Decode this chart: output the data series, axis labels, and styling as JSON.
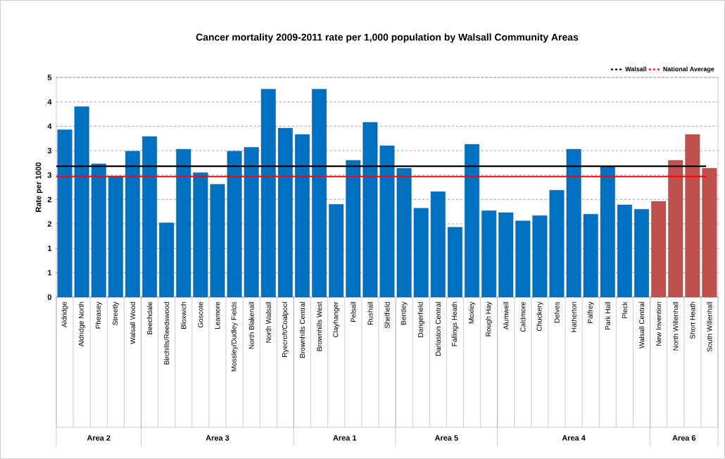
{
  "chart_data": {
    "type": "bar",
    "title": "Cancer mortality 2009-2011 rate per 1,000 population by Walsall Community Areas",
    "ylabel": "Rate per 1000",
    "categories": [
      "Aldridge",
      "Aldridge North",
      "Pheasey",
      "Streetly",
      "Walsall Wood",
      "Beechdale",
      "Birchills/Reedswood",
      "Bloxwich",
      "Goscote",
      "Leamore",
      "Mossley/Dudley Fields",
      "North Blakenall",
      "North Walsall",
      "Ryecroft/Coalpool",
      "Brownhills Central",
      "Brownhills West",
      "Clayhanger",
      "Pelsall",
      "Rushall",
      "Shelfield",
      "Bentley",
      "Dangerfield",
      "Darlaston Central",
      "Fallings Heath",
      "Moxley",
      "Rough Hay",
      "Alumwell",
      "Caldmore",
      "Chuckery",
      "Delves",
      "Hatherton",
      "Palfrey",
      "Park Hall",
      "Pleck",
      "Walsall Central",
      "New Invention",
      "North Willenhall",
      "Short Heath",
      "South Willenhall"
    ],
    "values": [
      3.43,
      3.9,
      2.73,
      2.48,
      2.99,
      3.29,
      1.52,
      3.03,
      2.55,
      2.31,
      2.99,
      3.07,
      4.26,
      3.46,
      3.33,
      4.26,
      1.9,
      2.8,
      3.58,
      3.1,
      2.64,
      1.82,
      2.16,
      1.43,
      3.13,
      1.77,
      1.73,
      1.56,
      1.67,
      2.19,
      3.03,
      1.7,
      2.68,
      1.89,
      1.8,
      1.96,
      2.8,
      3.33,
      2.64
    ],
    "colors": [
      "#0070c0",
      "#0070c0",
      "#0070c0",
      "#0070c0",
      "#0070c0",
      "#0070c0",
      "#0070c0",
      "#0070c0",
      "#0070c0",
      "#0070c0",
      "#0070c0",
      "#0070c0",
      "#0070c0",
      "#0070c0",
      "#0070c0",
      "#0070c0",
      "#0070c0",
      "#0070c0",
      "#0070c0",
      "#0070c0",
      "#0070c0",
      "#0070c0",
      "#0070c0",
      "#0070c0",
      "#0070c0",
      "#0070c0",
      "#0070c0",
      "#0070c0",
      "#0070c0",
      "#0070c0",
      "#0070c0",
      "#0070c0",
      "#0070c0",
      "#0070c0",
      "#0070c0",
      "#c0504d",
      "#c0504d",
      "#c0504d",
      "#c0504d"
    ],
    "ylim": [
      0,
      4.5
    ],
    "yticks": [
      0,
      {
        "value": 0.5,
        "label": "1"
      },
      1,
      {
        "value": 1.5,
        "label": "2"
      },
      2,
      {
        "value": 2.5,
        "label": "3"
      },
      3,
      {
        "value": 3.5,
        "label": "4"
      },
      4,
      {
        "value": 4.5,
        "label": "5"
      }
    ],
    "grid": "y",
    "legend": "top right",
    "ref_lines": [
      {
        "axis": "y",
        "value": 2.68,
        "label": "Walsall",
        "color": "#000000"
      },
      {
        "axis": "y",
        "value": 2.47,
        "label": "National Average",
        "color": "#ff0000"
      }
    ],
    "annotations": [
      "Area 2",
      "Area 3",
      "Area 1",
      "Area 5",
      "Area 4",
      "Area 6"
    ]
  }
}
